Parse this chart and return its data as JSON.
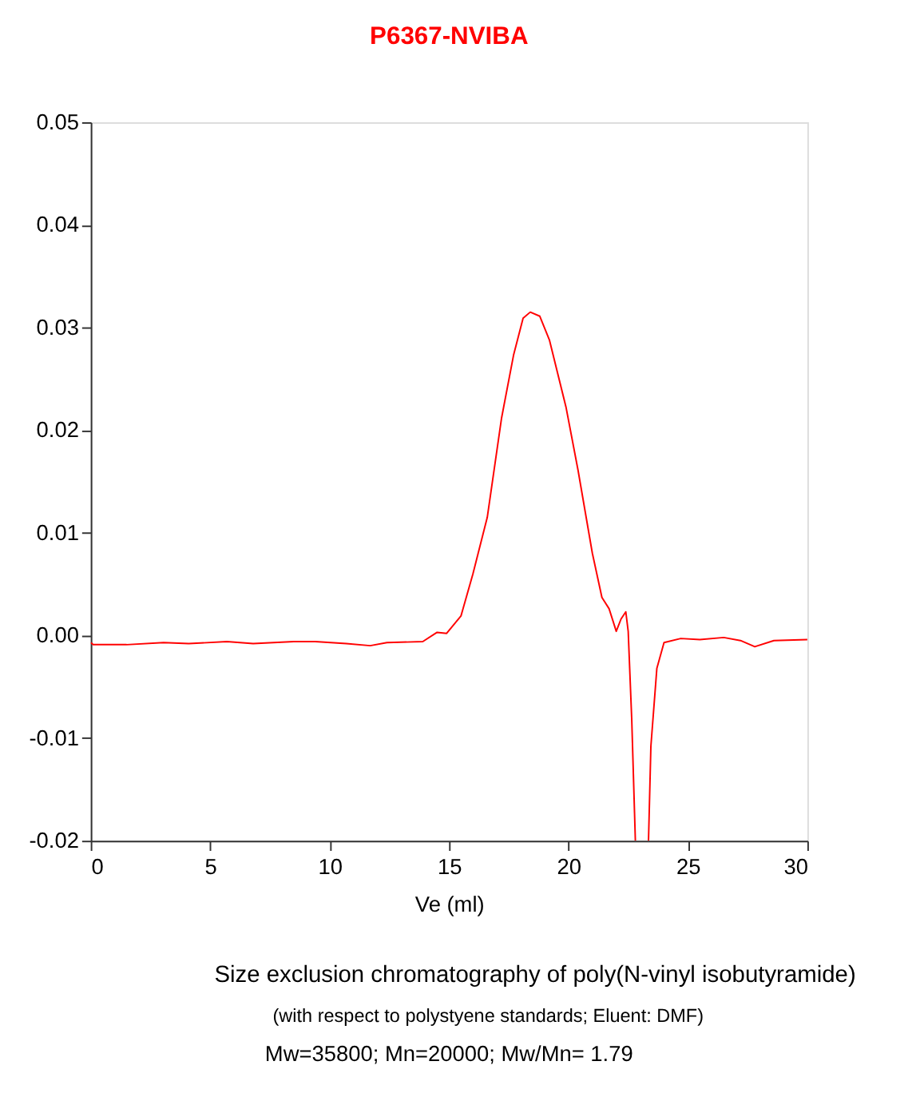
{
  "chart_data": {
    "type": "line",
    "title": "P6367-NVIBA",
    "xlabel": "Ve (ml)",
    "annotations": [
      "Size exclusion chromatography of poly(N-vinyl isobutyramide)",
      "(with respect to polystyene standards;  Eluent: DMF)",
      "Mw=35800;  Mn=20000;     Mw/Mn= 1.79"
    ],
    "series": [
      {
        "color": "#ff0000",
        "x": [
          0,
          0.1,
          1.5,
          3.05,
          4.1,
          5.7,
          6.8,
          8.5,
          9.4,
          10.7,
          11.7,
          12.4,
          13.9,
          14.5,
          14.9,
          15.5,
          16.0,
          16.6,
          17.2,
          17.7,
          18.1,
          18.4,
          18.8,
          19.2,
          19.9,
          20.4,
          21.0,
          21.4,
          21.7,
          22.0,
          22.2,
          22.4,
          22.5,
          22.65,
          22.8,
          23.1,
          23.35,
          23.45,
          23.7,
          24.0,
          24.7,
          25.5,
          26.5,
          27.2,
          27.8,
          28.6,
          30
        ],
        "values": [
          -0.0007,
          -0.0009,
          -0.0009,
          -0.0007,
          -0.0008,
          -0.0006,
          -0.0008,
          -0.0006,
          -0.0006,
          -0.0008,
          -0.001,
          -0.0007,
          -0.0006,
          0.0003,
          0.0002,
          0.0019,
          0.006,
          0.0115,
          0.0212,
          0.0273,
          0.0309,
          0.0315,
          0.0311,
          0.0288,
          0.0222,
          0.0161,
          0.008,
          0.0037,
          0.0026,
          0.0004,
          0.0016,
          0.0023,
          0.0004,
          -0.0083,
          -0.02,
          null,
          -0.02,
          -0.0108,
          -0.0032,
          -0.0007,
          -0.0003,
          -0.0004,
          -0.0002,
          -0.0005,
          -0.0011,
          -0.0005,
          -0.0004
        ]
      }
    ],
    "xlim": [
      0,
      30
    ],
    "xticks": [
      0,
      5,
      10,
      15,
      20,
      25,
      30
    ],
    "ylim": [
      -0.02,
      0.05
    ],
    "yticks": [
      -0.02,
      -0.01,
      {
        "value": 0,
        "label": "0.00"
      },
      0.01,
      0.02,
      0.03,
      0.04,
      0.05
    ],
    "grid": false,
    "line_style": "solid",
    "marker": "none"
  }
}
